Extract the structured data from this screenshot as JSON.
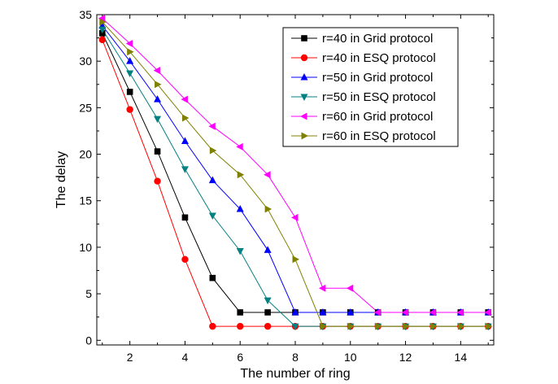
{
  "chart_data": {
    "type": "line",
    "title": "",
    "xlabel": "The number of ring",
    "ylabel": "The delay",
    "xlim": [
      0.8,
      15.2
    ],
    "ylim": [
      -0.5,
      35
    ],
    "x_ticks": [
      2,
      4,
      6,
      8,
      10,
      12,
      14
    ],
    "y_ticks": [
      0,
      5,
      10,
      15,
      20,
      25,
      30,
      35
    ],
    "x_tick_labels": [
      "2",
      "4",
      "6",
      "8",
      "10",
      "12",
      "14"
    ],
    "y_tick_labels": [
      "0",
      "5",
      "10",
      "15",
      "20",
      "25",
      "30",
      "35"
    ],
    "grid": false,
    "legend_position": "top-right",
    "x": [
      1,
      2,
      3,
      4,
      5,
      6,
      7,
      8,
      9,
      10,
      11,
      12,
      13,
      14,
      15
    ],
    "series": [
      {
        "name": "r=40 in Grid protocol",
        "color": "#000000",
        "marker": "square",
        "values": [
          33,
          26.7,
          20.3,
          13.2,
          6.7,
          3,
          3,
          3,
          3,
          3,
          3,
          3,
          3,
          3,
          3
        ]
      },
      {
        "name": "r=40 in ESQ protocol",
        "color": "#ff0000",
        "marker": "circle",
        "values": [
          32.3,
          24.8,
          17.1,
          8.7,
          1.5,
          1.5,
          1.5,
          1.5,
          1.5,
          1.5,
          1.5,
          1.5,
          1.5,
          1.5,
          1.5
        ]
      },
      {
        "name": "r=50 in Grid protocol",
        "color": "#0000ff",
        "marker": "triangle-up",
        "values": [
          33.8,
          30,
          25.9,
          21.4,
          17.2,
          14.1,
          9.7,
          3,
          3,
          3,
          3,
          3,
          3,
          3,
          3
        ]
      },
      {
        "name": "r=50 in ESQ protocol",
        "color": "#008080",
        "marker": "triangle-down",
        "values": [
          33.4,
          28.7,
          23.8,
          18.4,
          13.4,
          9.6,
          4.3,
          1.5,
          1.5,
          1.5,
          1.5,
          1.5,
          1.5,
          1.5,
          1.5
        ]
      },
      {
        "name": "r=60 in Grid protocol",
        "color": "#ff00ff",
        "marker": "triangle-left",
        "values": [
          34.6,
          31.9,
          29,
          25.9,
          23,
          20.8,
          17.8,
          13.2,
          5.6,
          5.6,
          3,
          3,
          3,
          3,
          3
        ]
      },
      {
        "name": "r=60 in ESQ protocol",
        "color": "#808000",
        "marker": "triangle-right",
        "values": [
          34.2,
          31,
          27.5,
          23.9,
          20.4,
          17.8,
          14.1,
          8.7,
          1.5,
          1.5,
          1.5,
          1.5,
          1.5,
          1.5,
          1.5
        ]
      }
    ]
  }
}
